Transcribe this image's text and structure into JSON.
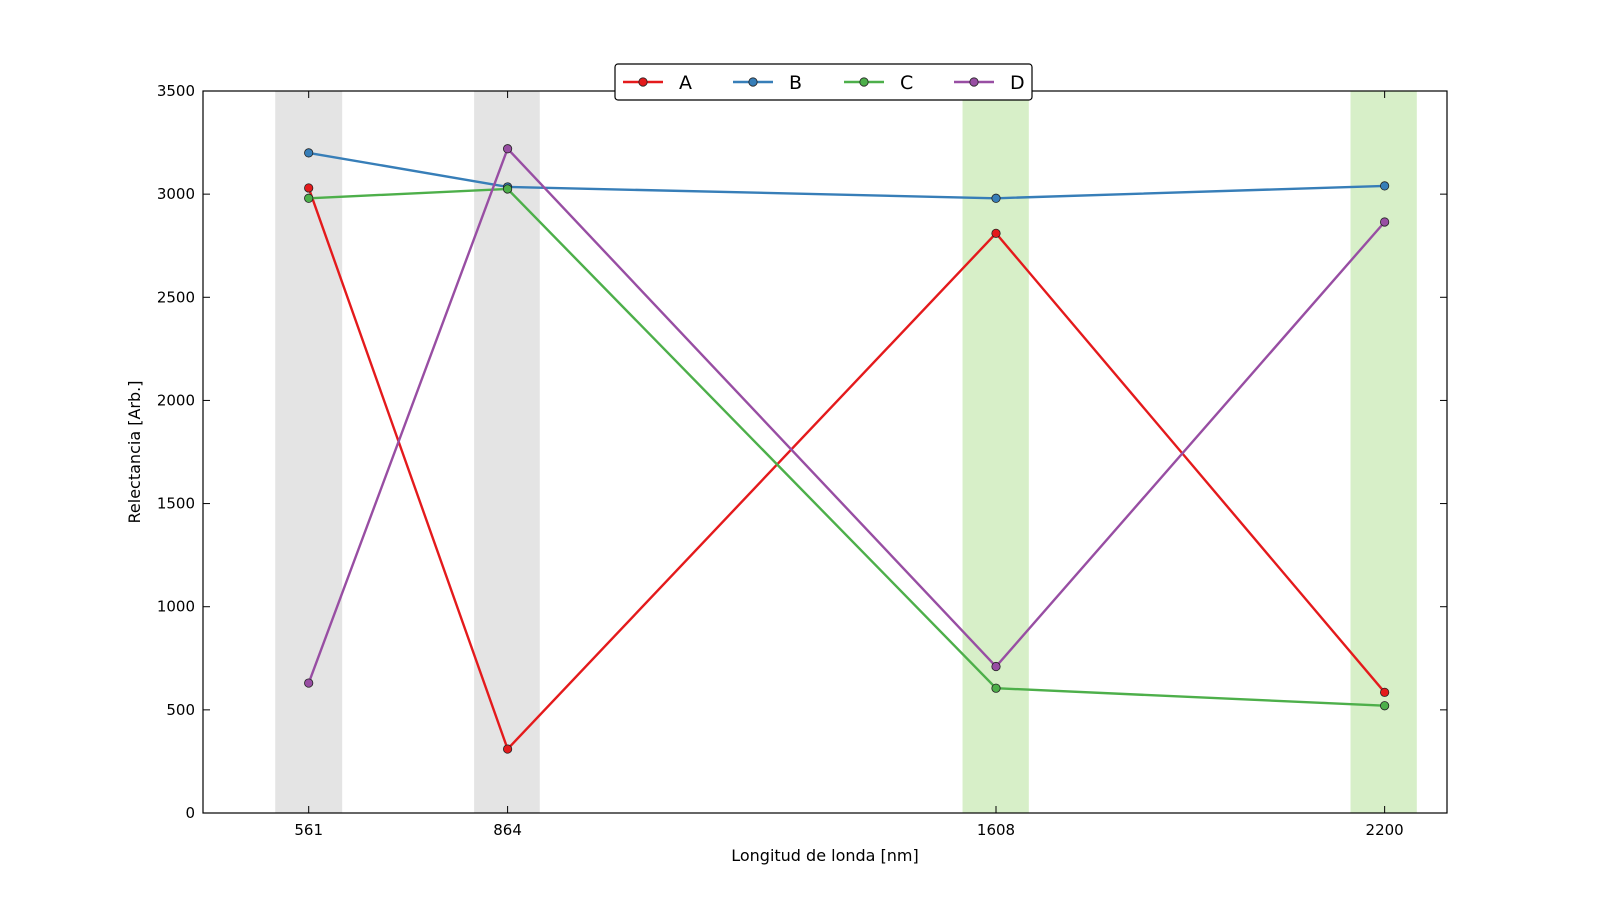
{
  "chart_data": {
    "type": "line",
    "title": "",
    "xlabel": "Longitud de londa [nm]",
    "ylabel": "Relectancia [Arb.]",
    "x": [
      561,
      864,
      1608,
      2200
    ],
    "xticks": [
      "561",
      "864",
      "1608",
      "2200"
    ],
    "xlim": [
      400,
      2295
    ],
    "ylim": [
      0,
      3500
    ],
    "yticks": [
      "0",
      "500",
      "1000",
      "1500",
      "2000",
      "2500",
      "3000",
      "3500"
    ],
    "grid": false,
    "legend_position": "top-center",
    "bands": [
      {
        "from": 510,
        "to": 612,
        "color": "#d9d9d9"
      },
      {
        "from": 813,
        "to": 913,
        "color": "#d9d9d9"
      },
      {
        "from": 1557,
        "to": 1658,
        "color": "#c6e8b0"
      },
      {
        "from": 2148,
        "to": 2249,
        "color": "#c6e8b0"
      }
    ],
    "series": [
      {
        "name": "A",
        "color": "#e41a1c",
        "values": [
          3030,
          310,
          2810,
          585
        ]
      },
      {
        "name": "B",
        "color": "#377eb8",
        "values": [
          3200,
          3035,
          2980,
          3040
        ]
      },
      {
        "name": "C",
        "color": "#4daf4a",
        "values": [
          2980,
          3025,
          605,
          520
        ]
      },
      {
        "name": "D",
        "color": "#984ea3",
        "values": [
          630,
          3220,
          710,
          2865
        ]
      }
    ]
  }
}
